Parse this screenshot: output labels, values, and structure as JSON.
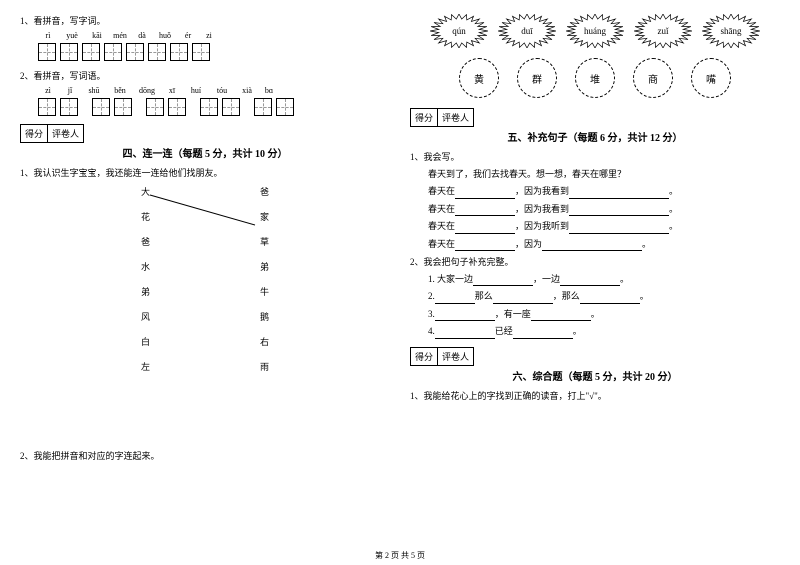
{
  "left": {
    "q1": {
      "label": "1、看拼音，写字词。",
      "pinyin": [
        "rì",
        "yuè",
        "kāi",
        "mén",
        "dà",
        "huǒ",
        "ér",
        "zi"
      ],
      "pinyin_widths": [
        20,
        24,
        22,
        20,
        20,
        22,
        20,
        18
      ]
    },
    "q2": {
      "label": "2、看拼音，写词语。",
      "pinyin": [
        "zì",
        "jǐ",
        "shū",
        "běn",
        "dōng",
        "xī",
        "huí",
        "tóu",
        "xià",
        "bɑ"
      ],
      "pinyin_widths": [
        20,
        20,
        24,
        24,
        26,
        20,
        24,
        24,
        22,
        18
      ]
    },
    "score": {
      "label1": "得分",
      "label2": "评卷人"
    },
    "section4": {
      "title": "四、连一连（每题 5 分，共计 10 分）",
      "q1_label": "1、我认识生字宝宝，我还能连一连给他们找朋友。",
      "left_chars": [
        "大",
        "花",
        "爸",
        "水",
        "弟",
        "风",
        "白",
        "左"
      ],
      "right_chars": [
        "爸",
        "家",
        "草",
        "弟",
        "牛",
        "鹅",
        "右",
        "雨"
      ],
      "q2_label": "2、我能把拼音和对应的字连起来。"
    }
  },
  "right": {
    "zigzag_pinyin": [
      "qún",
      "duī",
      "huáng",
      "zuǐ",
      "shāng"
    ],
    "circle_chars": [
      "黄",
      "群",
      "堆",
      "商",
      "嘴"
    ],
    "score": {
      "label1": "得分",
      "label2": "评卷人"
    },
    "section5": {
      "title": "五、补充句子（每题 6 分，共计 12 分）",
      "q1_label": "1、我会写。",
      "line0": "春天到了，我们去找春天。想一想，春天在哪里？",
      "line1a": "春天在",
      "line1b": "，因为我看到",
      "line2a": "春天在",
      "line2b": "，因为我看到",
      "line3a": "春天在",
      "line3b": "，因为我听到",
      "line4a": "春天在",
      "line4b": "，因为",
      "q2_label": "2、我会把句子补充完整。",
      "l21a": "1. 大家一边",
      "l21b": "，一边",
      "l21c": "。",
      "l22a": "2.",
      "l22b": "那么",
      "l22c": "，那么",
      "l22d": "。",
      "l23a": "3.",
      "l23b": "，有一座",
      "l23c": "。",
      "l24a": "4.",
      "l24b": "已经",
      "l24c": "。"
    },
    "section6": {
      "title": "六、综合题（每题 5 分，共计 20 分）",
      "q1_label": "1、我能给花心上的字找到正确的读音，打上\"√\"。"
    }
  },
  "footer": "第 2 页 共 5 页",
  "colors": {
    "text": "#000000",
    "bg": "#ffffff",
    "grid": "#cccccc"
  }
}
